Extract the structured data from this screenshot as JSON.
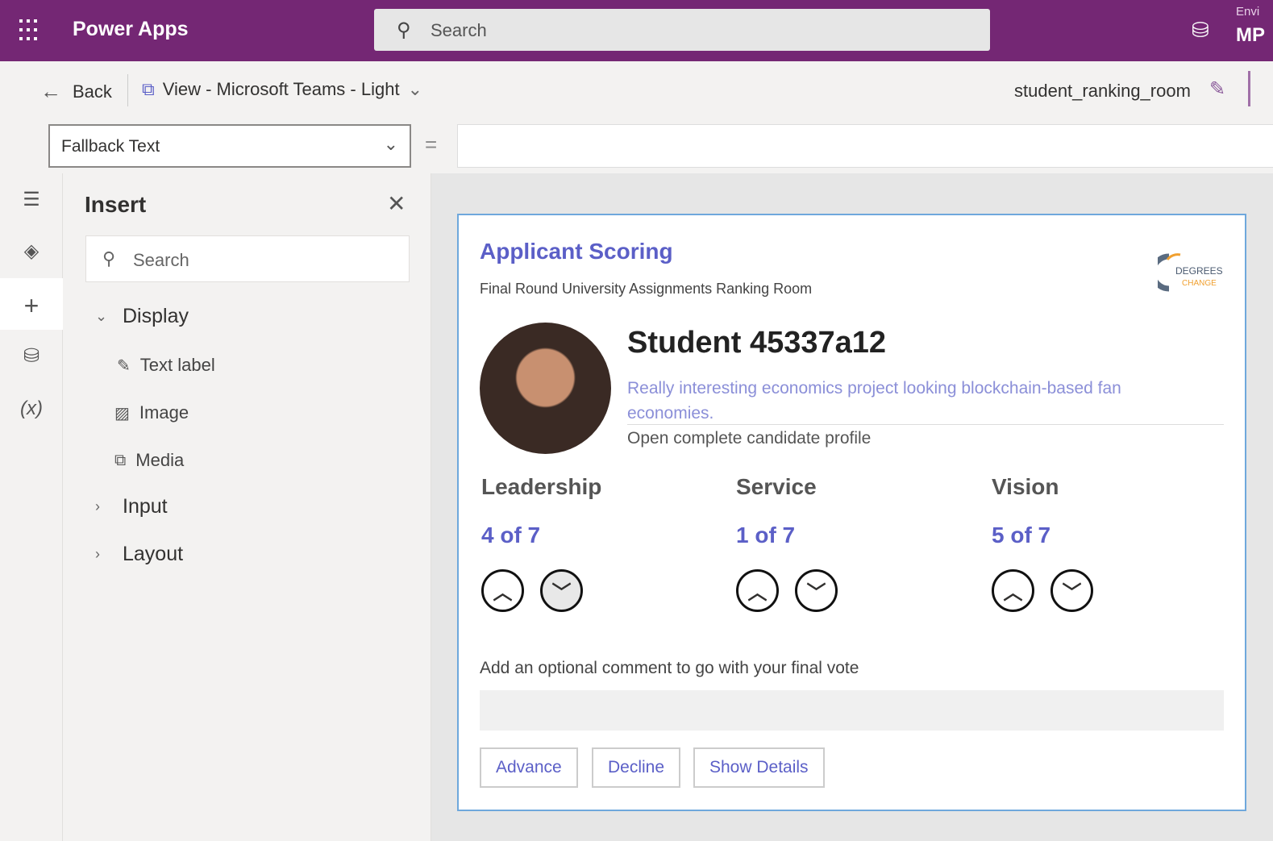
{
  "header": {
    "app_name": "Power Apps",
    "search_placeholder": "Search",
    "env_label": "Envi",
    "env_value": "MP"
  },
  "commandbar": {
    "back_label": "Back",
    "view_label": "View - Microsoft Teams - Light",
    "app_file": "student_ranking_room"
  },
  "formula_bar": {
    "property": "Fallback Text",
    "equals": "=",
    "formula": ""
  },
  "insert_panel": {
    "title": "Insert",
    "search_placeholder": "Search",
    "groups": [
      {
        "label": "Display",
        "expanded": true,
        "items": [
          {
            "label": "Text label",
            "icon": "text-label-icon"
          },
          {
            "label": "Image",
            "icon": "image-icon"
          },
          {
            "label": "Media",
            "icon": "media-icon"
          }
        ]
      },
      {
        "label": "Input",
        "expanded": false
      },
      {
        "label": "Layout",
        "expanded": false
      }
    ]
  },
  "card": {
    "title": "Applicant Scoring",
    "subtitle": "Final Round University Assignments Ranking Room",
    "logo_text": "DEGREES of CHANGE",
    "student_name": "Student 45337a12",
    "description": "Really interesting economics project looking blockchain-based fan economies.",
    "profile_link": "Open complete candidate profile",
    "criteria": [
      {
        "label": "Leadership",
        "value": "4 of 7",
        "score": 4,
        "max": 7
      },
      {
        "label": "Service",
        "value": "1 of 7",
        "score": 1,
        "max": 7
      },
      {
        "label": "Vision",
        "value": "5 of 7",
        "score": 5,
        "max": 7
      }
    ],
    "comment_label": "Add an optional comment to go with your final vote",
    "comment_value": "",
    "buttons": {
      "advance": "Advance",
      "decline": "Decline",
      "details": "Show Details"
    }
  },
  "colors": {
    "header": "#742774",
    "accent": "#5b5fc7",
    "card_border": "#6fa8dc"
  }
}
